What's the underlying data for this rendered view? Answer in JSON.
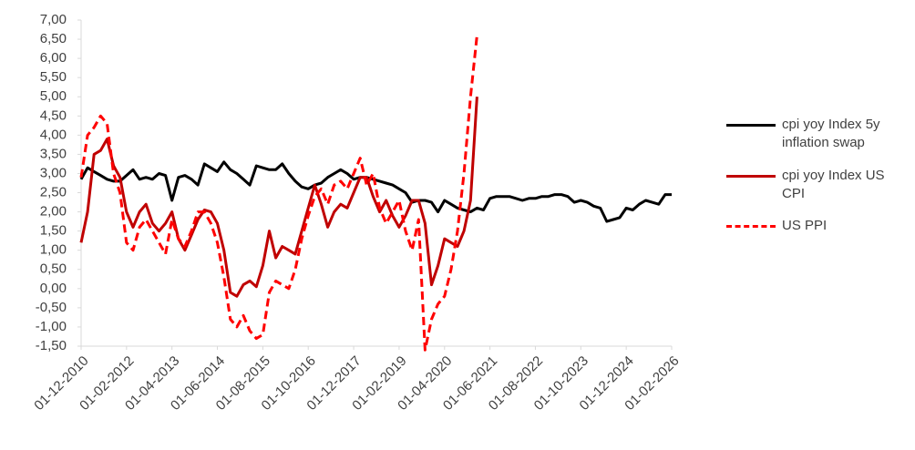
{
  "chart_data": {
    "type": "line",
    "x": [
      "01-12-2010",
      "01-02-2011",
      "01-04-2011",
      "01-06-2011",
      "01-08-2011",
      "01-10-2011",
      "01-12-2011",
      "01-02-2012",
      "01-04-2012",
      "01-06-2012",
      "01-08-2012",
      "01-10-2012",
      "01-12-2012",
      "01-02-2013",
      "01-04-2013",
      "01-06-2013",
      "01-08-2013",
      "01-10-2013",
      "01-12-2013",
      "01-02-2014",
      "01-04-2014",
      "01-06-2014",
      "01-08-2014",
      "01-10-2014",
      "01-12-2014",
      "01-02-2015",
      "01-04-2015",
      "01-06-2015",
      "01-08-2015",
      "01-10-2015",
      "01-12-2015",
      "01-02-2016",
      "01-04-2016",
      "01-06-2016",
      "01-08-2016",
      "01-10-2016",
      "01-12-2016",
      "01-02-2017",
      "01-04-2017",
      "01-06-2017",
      "01-08-2017",
      "01-10-2017",
      "01-12-2017",
      "01-02-2018",
      "01-04-2018",
      "01-06-2018",
      "01-08-2018",
      "01-10-2018",
      "01-12-2018",
      "01-02-2019",
      "01-04-2019",
      "01-06-2019",
      "01-08-2019",
      "01-10-2019",
      "01-12-2019",
      "01-02-2020",
      "01-04-2020",
      "01-06-2020",
      "01-08-2020",
      "01-10-2020",
      "01-12-2020",
      "01-02-2021",
      "01-04-2021",
      "01-06-2021",
      "01-08-2021",
      "01-10-2021",
      "01-12-2021",
      "01-02-2022",
      "01-04-2022",
      "01-06-2022",
      "01-08-2022",
      "01-10-2022",
      "01-12-2022",
      "01-02-2023",
      "01-04-2023",
      "01-06-2023",
      "01-08-2023",
      "01-10-2023",
      "01-12-2023",
      "01-02-2024",
      "01-04-2024",
      "01-06-2024",
      "01-08-2024",
      "01-10-2024",
      "01-12-2024",
      "01-02-2025",
      "01-04-2025",
      "01-06-2025",
      "01-08-2025",
      "01-10-2025",
      "01-12-2025",
      "01-02-2026"
    ],
    "xticks": [
      "01-12-2010",
      "01-02-2012",
      "01-04-2013",
      "01-06-2014",
      "01-08-2015",
      "01-10-2016",
      "01-12-2017",
      "01-02-2019",
      "01-04-2020",
      "01-06-2021",
      "01-08-2022",
      "01-10-2023",
      "01-12-2024",
      "01-02-2026"
    ],
    "series": [
      {
        "name": "cpi yoy Index 5y inflation swap",
        "color": "#000000",
        "dashed": false,
        "values": [
          2.85,
          3.15,
          3.05,
          2.95,
          2.85,
          2.8,
          2.8,
          2.95,
          3.1,
          2.85,
          2.9,
          2.85,
          3.0,
          2.95,
          2.3,
          2.9,
          2.95,
          2.85,
          2.7,
          3.25,
          3.15,
          3.05,
          3.3,
          3.1,
          3.0,
          2.85,
          2.7,
          3.2,
          3.15,
          3.1,
          3.1,
          3.25,
          3.0,
          2.8,
          2.65,
          2.6,
          2.7,
          2.75,
          2.9,
          3.0,
          3.1,
          3.0,
          2.85,
          2.9,
          2.9,
          2.85,
          2.8,
          2.75,
          2.7,
          2.6,
          2.5,
          2.25,
          2.3,
          2.3,
          2.25,
          2.0,
          2.3,
          2.2,
          2.1,
          2.05,
          2.0,
          2.1,
          2.05,
          2.35,
          2.4,
          2.4,
          2.4,
          2.35,
          2.3,
          2.35,
          2.35,
          2.4,
          2.4,
          2.45,
          2.45,
          2.4,
          2.25,
          2.3,
          2.25,
          2.15,
          2.1,
          1.75,
          1.8,
          1.85,
          2.1,
          2.05,
          2.2,
          2.3,
          2.25,
          2.2,
          2.45,
          2.45
        ]
      },
      {
        "name": "cpi yoy Index US CPI",
        "color": "#c00000",
        "dashed": false,
        "values": [
          1.2,
          2.0,
          3.5,
          3.6,
          3.9,
          3.2,
          2.9,
          2.0,
          1.6,
          2.0,
          2.2,
          1.7,
          1.5,
          1.7,
          2.0,
          1.3,
          1.0,
          1.4,
          1.8,
          2.05,
          2.0,
          1.7,
          1.0,
          -0.1,
          -0.2,
          0.1,
          0.2,
          0.05,
          0.6,
          1.5,
          0.8,
          1.1,
          1.0,
          0.9,
          1.5,
          2.1,
          2.7,
          2.2,
          1.6,
          2.0,
          2.2,
          2.1,
          2.5,
          2.9,
          2.9,
          2.4,
          2.0,
          2.3,
          1.9,
          1.6,
          1.9,
          2.3,
          2.3,
          1.7,
          0.1,
          0.6,
          1.3,
          1.2,
          1.1,
          1.5,
          2.3,
          5.0,
          null,
          null,
          null,
          null,
          null,
          null,
          null,
          null,
          null,
          null,
          null,
          null,
          null,
          null,
          null,
          null,
          null,
          null,
          null,
          null,
          null,
          null,
          null,
          null,
          null,
          null,
          null,
          null,
          null,
          null
        ]
      },
      {
        "name": "US PPI",
        "color": "#ff0000",
        "dashed": true,
        "values": [
          2.9,
          4.0,
          4.2,
          4.5,
          4.3,
          3.0,
          2.5,
          1.2,
          1.0,
          1.6,
          1.8,
          1.5,
          1.2,
          0.9,
          1.8,
          1.3,
          1.1,
          1.5,
          2.0,
          2.0,
          1.7,
          1.2,
          0.3,
          -0.8,
          -1.0,
          -0.7,
          -1.1,
          -1.3,
          -1.2,
          -0.1,
          0.2,
          0.1,
          0.0,
          0.5,
          1.3,
          1.9,
          2.4,
          2.6,
          2.2,
          2.7,
          2.8,
          2.6,
          3.0,
          3.4,
          2.7,
          3.0,
          2.1,
          1.7,
          2.0,
          2.3,
          1.5,
          1.0,
          1.8,
          -1.6,
          -0.8,
          -0.4,
          -0.2,
          0.5,
          1.5,
          3.0,
          5.0,
          6.6,
          null,
          null,
          null,
          null,
          null,
          null,
          null,
          null,
          null,
          null,
          null,
          null,
          null,
          null,
          null,
          null,
          null,
          null,
          null,
          null,
          null,
          null,
          null,
          null,
          null,
          null,
          null,
          null,
          null,
          null
        ]
      }
    ],
    "ylim": [
      -1.5,
      7
    ],
    "yticks": [
      {
        "value": -1.5,
        "label": "-1,50"
      },
      {
        "value": -1,
        "label": "-1,00"
      },
      {
        "value": -0.5,
        "label": "-0,50"
      },
      {
        "value": 0,
        "label": "0,00"
      },
      {
        "value": 0.5,
        "label": "0,50"
      },
      {
        "value": 1,
        "label": "1,00"
      },
      {
        "value": 1.5,
        "label": "1,50"
      },
      {
        "value": 2,
        "label": "2,00"
      },
      {
        "value": 2.5,
        "label": "2,50"
      },
      {
        "value": 3,
        "label": "3,00"
      },
      {
        "value": 3.5,
        "label": "3,50"
      },
      {
        "value": 4,
        "label": "4,00"
      },
      {
        "value": 4.5,
        "label": "4,50"
      },
      {
        "value": 5,
        "label": "5,00"
      },
      {
        "value": 5.5,
        "label": "5,50"
      },
      {
        "value": 6,
        "label": "6,00"
      },
      {
        "value": 6.5,
        "label": "6,50"
      },
      {
        "value": 7,
        "label": "7,00"
      }
    ],
    "grid": false,
    "legend": "right"
  }
}
